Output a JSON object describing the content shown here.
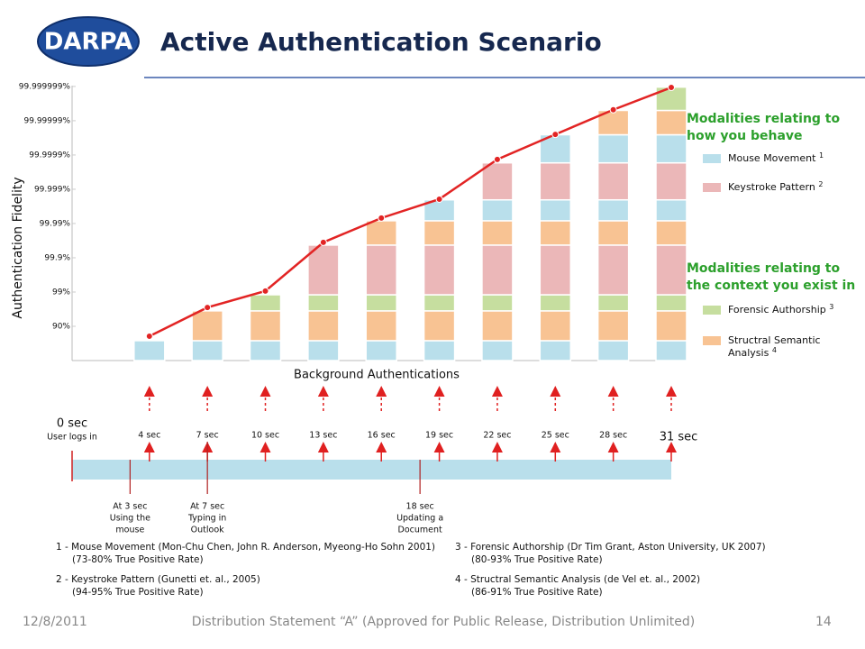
{
  "header": {
    "logo": "DARPA",
    "title": "Active Authentication Scenario"
  },
  "chart_data": {
    "type": "stacked-bar-line",
    "ylabel": "Authentication Fidelity",
    "xlabel": "Background Authentications",
    "ylim": [
      0,
      8.05
    ],
    "yticks": [
      {
        "value": 1,
        "label": "90%"
      },
      {
        "value": 2,
        "label": "99%"
      },
      {
        "value": 3,
        "label": "99.9%"
      },
      {
        "value": 4,
        "label": "99.99%"
      },
      {
        "value": 5,
        "label": "99.999%"
      },
      {
        "value": 6,
        "label": "99.9999%"
      },
      {
        "value": 7,
        "label": "99.99999%"
      },
      {
        "value": 8,
        "label": "99.999999%"
      }
    ],
    "xlim": [
      0,
      31
    ],
    "xticks": [
      {
        "value": 0,
        "label": "0 sec"
      },
      {
        "value": 4,
        "label": "4 sec"
      },
      {
        "value": 7,
        "label": "7 sec"
      },
      {
        "value": 10,
        "label": "10 sec"
      },
      {
        "value": 13,
        "label": "13 sec"
      },
      {
        "value": 16,
        "label": "16 sec"
      },
      {
        "value": 19,
        "label": "19 sec"
      },
      {
        "value": 22,
        "label": "22 sec"
      },
      {
        "value": 25,
        "label": "25 sec"
      },
      {
        "value": 28,
        "label": "28 sec"
      },
      {
        "value": 31,
        "label": "31 sec"
      }
    ],
    "start_note": "User logs in",
    "x": [
      4,
      7,
      10,
      13,
      16,
      19,
      22,
      25,
      28,
      31
    ],
    "series": [
      {
        "name": "Mouse Movement",
        "ref": "1",
        "color": "#b9dfeb",
        "group": 0
      },
      {
        "name": "Keystroke Pattern",
        "ref": "2",
        "color": "#ebb7b8",
        "group": 0
      },
      {
        "name": "Forensic Authorship",
        "ref": "3",
        "color": "#c6de9f",
        "group": 1
      },
      {
        "name": "Structral Semantic Analysis",
        "ref": "4",
        "color": "#f8c393",
        "group": 1
      }
    ],
    "groups": [
      {
        "title": [
          "Modalities relating to",
          "how you behave"
        ],
        "color": "#2ca02c"
      },
      {
        "title": [
          "Modalities relating to",
          "the context you exist in"
        ],
        "color": "#2ca02c"
      }
    ],
    "stack_layers": [
      {
        "series": 0,
        "value": 0.58
      },
      {
        "series": 3,
        "value": 0.87
      },
      {
        "series": 2,
        "value": 0.47
      },
      {
        "series": 1,
        "value": 1.45
      },
      {
        "series": 3,
        "value": 0.71
      },
      {
        "series": 0,
        "value": 0.61
      },
      {
        "series": 1,
        "value": 1.08
      },
      {
        "series": 0,
        "value": 0.82
      },
      {
        "series": 3,
        "value": 0.71
      },
      {
        "series": 2,
        "value": 0.68
      }
    ],
    "line": {
      "color": "#e22424",
      "values": [
        0.71,
        1.55,
        2.03,
        3.45,
        4.16,
        4.71,
        5.87,
        6.6,
        7.32,
        7.97
      ]
    },
    "events": [
      {
        "x": 3,
        "label": [
          "At 3 sec",
          "Using the",
          "mouse"
        ]
      },
      {
        "x": 7,
        "label": [
          "At 7 sec",
          "Typing in",
          "Outlook"
        ]
      },
      {
        "x": 18,
        "label": [
          "18 sec",
          "Updating a",
          "Document"
        ]
      }
    ]
  },
  "references": [
    [
      "1 - Mouse Movement (Mon-Chu Chen, John R. Anderson, Myeong-Ho Sohn 2001)",
      "(73-80% True Positive Rate)"
    ],
    [
      "2 - Keystroke Pattern (Gunetti  et. al., 2005)",
      "(94-95% True Positive Rate)"
    ],
    [
      "3 - Forensic Authorship (Dr Tim Grant, Aston University, UK 2007)",
      "(80-93% True Positive Rate)"
    ],
    [
      "4 - Structral Semantic Analysis (de Vel et. al., 2002)",
      "(86-91% True Positive Rate)"
    ]
  ],
  "footer": {
    "date": "12/8/2011",
    "statement": "Distribution Statement “A” (Approved for Public Release, Distribution Unlimited)",
    "page": "14"
  }
}
